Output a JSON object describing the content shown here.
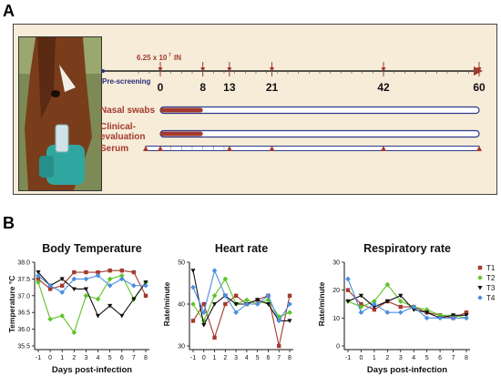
{
  "panel_a": {
    "letter": "A",
    "dose_label": "6.25 x 10",
    "dose_exponent": "7",
    "dose_route": "IN",
    "prescreen_label": "Pre-screening",
    "days": [
      "0",
      "8",
      "13",
      "21",
      "42",
      "60"
    ],
    "day_values": [
      0,
      8,
      13,
      21,
      42,
      60
    ],
    "rows": [
      {
        "label": "Nasal swabs",
        "filled_until": 8
      },
      {
        "label": "Clinical-\nevaluation",
        "filled_until": 8
      },
      {
        "label": "Serum",
        "markers": [
          -1,
          0,
          13,
          21,
          42,
          60
        ]
      }
    ],
    "colors": {
      "accent": "#a33a2e",
      "navy": "#2b2d7a",
      "bar_outline": "#2d3a8c",
      "bg": "#f6ecd8"
    }
  },
  "panel_b": {
    "letter": "B",
    "legend": [
      {
        "name": "T1",
        "color": "#a33a2e",
        "marker": "square"
      },
      {
        "name": "T2",
        "color": "#5ec427",
        "marker": "diamond"
      },
      {
        "name": "T3",
        "color": "#111111",
        "marker": "triangle"
      },
      {
        "name": "T4",
        "color": "#4a8fe0",
        "marker": "diamond"
      }
    ]
  },
  "chart_data": [
    {
      "type": "line",
      "title": "Body Temperature",
      "xlabel": "Days post-infection",
      "ylabel": "Temperature °C",
      "x": [
        -1,
        0,
        1,
        2,
        3,
        4,
        5,
        6,
        7,
        8
      ],
      "ylim": [
        35.5,
        38.0
      ],
      "yticks": [
        "35.5",
        "36.0",
        "36.5",
        "37.0",
        "37.5",
        "38.0"
      ],
      "series": [
        {
          "name": "T1",
          "values": [
            37.5,
            37.2,
            37.3,
            37.7,
            37.7,
            37.7,
            37.75,
            37.75,
            37.7,
            37.0
          ]
        },
        {
          "name": "T2",
          "values": [
            37.4,
            36.3,
            36.4,
            35.9,
            37.0,
            36.9,
            37.5,
            37.6,
            36.9,
            37.4
          ]
        },
        {
          "name": "T3",
          "values": [
            37.7,
            37.3,
            37.5,
            37.2,
            37.2,
            36.4,
            36.7,
            36.4,
            36.9,
            37.4
          ]
        },
        {
          "name": "T4",
          "values": [
            37.6,
            37.3,
            37.1,
            37.5,
            37.5,
            37.6,
            37.3,
            37.5,
            37.3,
            37.3
          ]
        }
      ]
    },
    {
      "type": "line",
      "title": "Heart rate",
      "xlabel": "",
      "ylabel": "Rate/minute",
      "x": [
        -1,
        0,
        1,
        2,
        3,
        4,
        5,
        6,
        7,
        8
      ],
      "ylim": [
        30,
        50
      ],
      "yticks": [
        "30",
        "40",
        "50"
      ],
      "series": [
        {
          "name": "T1",
          "values": [
            36,
            40,
            32,
            40,
            42,
            40,
            41,
            42,
            30,
            42
          ]
        },
        {
          "name": "T2",
          "values": [
            40,
            36,
            42,
            46,
            40,
            41,
            40,
            41,
            37,
            38
          ]
        },
        {
          "name": "T3",
          "values": [
            48,
            35,
            40,
            42,
            40,
            40,
            41,
            40,
            36,
            36
          ]
        },
        {
          "name": "T4",
          "values": [
            44,
            38,
            48,
            42,
            38,
            40,
            40,
            42,
            36,
            40
          ]
        }
      ]
    },
    {
      "type": "line",
      "title": "Respiratory rate",
      "xlabel": "Days post-infection",
      "ylabel": "Rate/minute",
      "x": [
        -1,
        0,
        1,
        2,
        3,
        4,
        5,
        6,
        7,
        8
      ],
      "ylim": [
        0,
        30
      ],
      "yticks": [
        "0",
        "10",
        "20",
        "30"
      ],
      "series": [
        {
          "name": "T1",
          "values": [
            20,
            15,
            13,
            16,
            14,
            14,
            12,
            11,
            10,
            12
          ]
        },
        {
          "name": "T2",
          "values": [
            16,
            14,
            16,
            22,
            16,
            14,
            13,
            11,
            11,
            10
          ]
        },
        {
          "name": "T3",
          "values": [
            16,
            18,
            14,
            16,
            18,
            13,
            12,
            10,
            11,
            11
          ]
        },
        {
          "name": "T4",
          "values": [
            24,
            12,
            15,
            12,
            12,
            14,
            10,
            10,
            10,
            10
          ]
        }
      ]
    }
  ]
}
